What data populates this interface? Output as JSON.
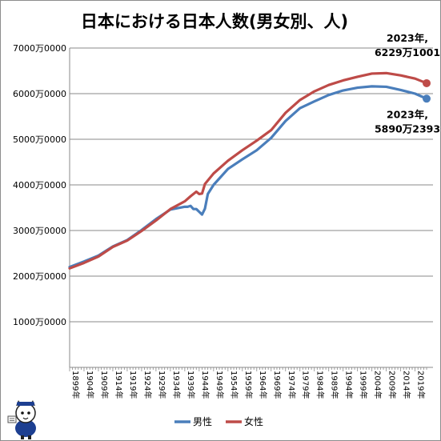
{
  "chart_data": {
    "type": "line",
    "title": "日本における日本人数(男女別、人)",
    "xlabel": "",
    "ylabel": "",
    "ylim": [
      0,
      7000
    ],
    "xlim": [
      1899,
      2023
    ],
    "grid": true,
    "legend_position": "bottom",
    "y_tick_values": [
      1000,
      2000,
      3000,
      4000,
      5000,
      6000,
      7000
    ],
    "y_tick_labels": [
      "1000万0000",
      "2000万0000",
      "3000万0000",
      "4000万0000",
      "5000万0000",
      "6000万0000",
      "7000万0000"
    ],
    "x_tick_years": [
      1899,
      1904,
      1909,
      1914,
      1919,
      1924,
      1929,
      1934,
      1939,
      1944,
      1949,
      1954,
      1959,
      1964,
      1969,
      1974,
      1979,
      1984,
      1989,
      1994,
      1999,
      2004,
      2009,
      2014,
      2019
    ],
    "x_tick_labels": [
      "1899年",
      "1904年",
      "1909年",
      "1914年",
      "1919年",
      "1924年",
      "1929年",
      "1934年",
      "1939年",
      "1944年",
      "1949年",
      "1954年",
      "1959年",
      "1964年",
      "1969年",
      "1974年",
      "1979年",
      "1984年",
      "1989年",
      "1994年",
      "1999年",
      "2004年",
      "2009年",
      "2014年",
      "2019年"
    ],
    "series": [
      {
        "name": "男性",
        "color": "#4a7ebb",
        "points": [
          [
            1899,
            2200
          ],
          [
            1904,
            2320
          ],
          [
            1909,
            2450
          ],
          [
            1914,
            2650
          ],
          [
            1919,
            2790
          ],
          [
            1924,
            3010
          ],
          [
            1929,
            3250
          ],
          [
            1934,
            3460
          ],
          [
            1939,
            3520
          ],
          [
            1940,
            3520
          ],
          [
            1941,
            3540
          ],
          [
            1942,
            3470
          ],
          [
            1943,
            3470
          ],
          [
            1944,
            3410
          ],
          [
            1945,
            3350
          ],
          [
            1946,
            3480
          ],
          [
            1947,
            3800
          ],
          [
            1949,
            4000
          ],
          [
            1954,
            4350
          ],
          [
            1959,
            4560
          ],
          [
            1964,
            4760
          ],
          [
            1969,
            5030
          ],
          [
            1974,
            5400
          ],
          [
            1979,
            5680
          ],
          [
            1984,
            5830
          ],
          [
            1989,
            5970
          ],
          [
            1994,
            6070
          ],
          [
            1999,
            6130
          ],
          [
            2004,
            6160
          ],
          [
            2009,
            6150
          ],
          [
            2014,
            6080
          ],
          [
            2019,
            6000
          ],
          [
            2023,
            5890.2393
          ]
        ]
      },
      {
        "name": "女性",
        "color": "#be4b48",
        "points": [
          [
            1899,
            2170
          ],
          [
            1904,
            2290
          ],
          [
            1909,
            2430
          ],
          [
            1914,
            2640
          ],
          [
            1919,
            2780
          ],
          [
            1924,
            2990
          ],
          [
            1929,
            3220
          ],
          [
            1934,
            3470
          ],
          [
            1939,
            3640
          ],
          [
            1941,
            3750
          ],
          [
            1943,
            3850
          ],
          [
            1944,
            3800
          ],
          [
            1945,
            3810
          ],
          [
            1946,
            4020
          ],
          [
            1949,
            4250
          ],
          [
            1954,
            4530
          ],
          [
            1959,
            4760
          ],
          [
            1964,
            4970
          ],
          [
            1969,
            5200
          ],
          [
            1974,
            5580
          ],
          [
            1979,
            5860
          ],
          [
            1984,
            6050
          ],
          [
            1989,
            6190
          ],
          [
            1994,
            6290
          ],
          [
            1999,
            6370
          ],
          [
            2004,
            6440
          ],
          [
            2009,
            6450
          ],
          [
            2014,
            6400
          ],
          [
            2019,
            6330
          ],
          [
            2023,
            6229.1001
          ]
        ]
      }
    ],
    "annotations": [
      {
        "series": "女性",
        "year": 2023,
        "line1": "2023年,",
        "line2": "6229万1001"
      },
      {
        "series": "男性",
        "year": 2023,
        "line1": "2023年,",
        "line2": "5890万2393"
      }
    ]
  }
}
